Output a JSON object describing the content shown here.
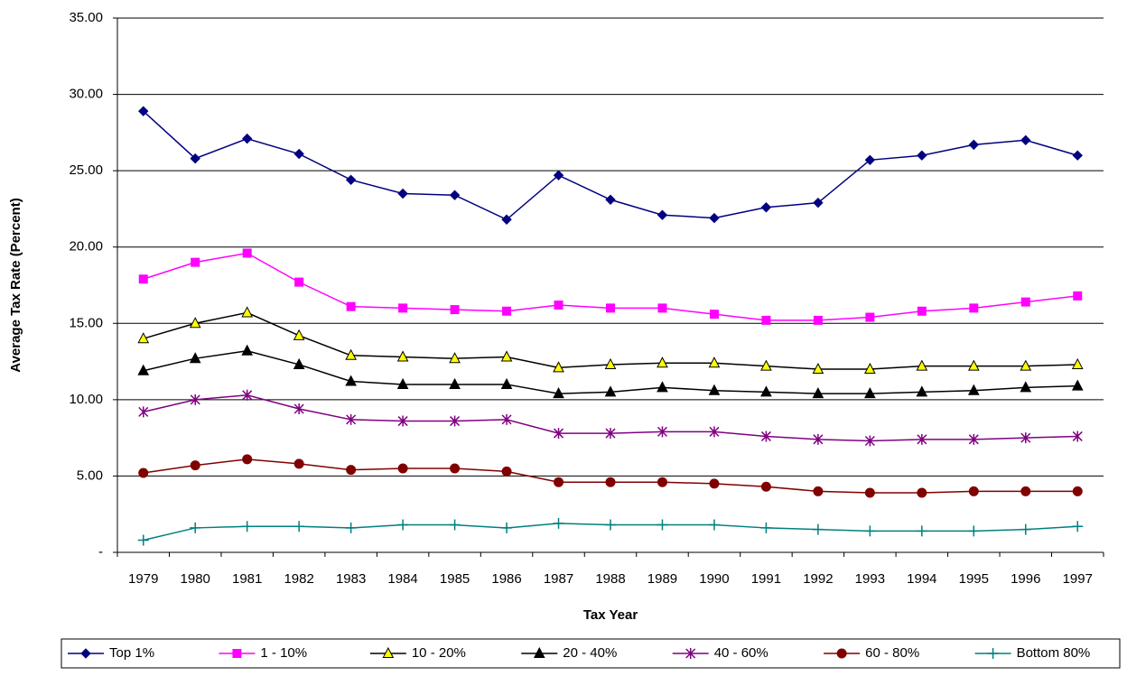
{
  "chart_data": {
    "type": "line",
    "x_label": "Tax Year",
    "y_label": "Average Tax Rate (Percent)",
    "categories": [
      "1979",
      "1980",
      "1981",
      "1982",
      "1983",
      "1984",
      "1985",
      "1986",
      "1987",
      "1988",
      "1989",
      "1990",
      "1991",
      "1992",
      "1993",
      "1994",
      "1995",
      "1996",
      "1997"
    ],
    "ylim": [
      0,
      35
    ],
    "yticks": [
      {
        "value": 0,
        "label": "-"
      },
      {
        "value": 5,
        "label": "5.00"
      },
      {
        "value": 10,
        "label": "10.00"
      },
      {
        "value": 15,
        "label": "15.00"
      },
      {
        "value": 20,
        "label": "20.00"
      },
      {
        "value": 25,
        "label": "25.00"
      },
      {
        "value": 30,
        "label": "30.00"
      },
      {
        "value": 35,
        "label": "35.00"
      }
    ],
    "grid": true,
    "legend": "bottom",
    "series": [
      {
        "name": "Top 1%",
        "color": "#000080",
        "marker": "diamond",
        "marker_fill": "#000080",
        "values": [
          28.9,
          25.8,
          27.1,
          26.1,
          24.4,
          23.5,
          23.4,
          21.8,
          24.7,
          23.1,
          22.1,
          21.9,
          22.6,
          22.9,
          25.7,
          26.0,
          26.7,
          27.0,
          26.0
        ]
      },
      {
        "name": "1 - 10%",
        "color": "#ff00ff",
        "marker": "square",
        "marker_fill": "#ff00ff",
        "values": [
          17.9,
          19.0,
          19.6,
          17.7,
          16.1,
          16.0,
          15.9,
          15.8,
          16.2,
          16.0,
          16.0,
          15.6,
          15.2,
          15.2,
          15.4,
          15.8,
          16.0,
          16.4,
          16.8
        ]
      },
      {
        "name": "10 - 20%",
        "color": "#000000",
        "marker": "triangle",
        "marker_fill": "#ffff00",
        "values": [
          14.0,
          15.0,
          15.7,
          14.2,
          12.9,
          12.8,
          12.7,
          12.8,
          12.1,
          12.3,
          12.4,
          12.4,
          12.2,
          12.0,
          12.0,
          12.2,
          12.2,
          12.2,
          12.3
        ]
      },
      {
        "name": "20 - 40%",
        "color": "#000000",
        "marker": "triangle",
        "marker_fill": "#000000",
        "values": [
          11.9,
          12.7,
          13.2,
          12.3,
          11.2,
          11.0,
          11.0,
          11.0,
          10.4,
          10.5,
          10.8,
          10.6,
          10.5,
          10.4,
          10.4,
          10.5,
          10.6,
          10.8,
          10.9
        ]
      },
      {
        "name": "40 - 60%",
        "color": "#800080",
        "marker": "star",
        "marker_fill": "#800080",
        "values": [
          9.2,
          10.0,
          10.3,
          9.4,
          8.7,
          8.6,
          8.6,
          8.7,
          7.8,
          7.8,
          7.9,
          7.9,
          7.6,
          7.4,
          7.3,
          7.4,
          7.4,
          7.5,
          7.6
        ]
      },
      {
        "name": "60 - 80%",
        "color": "#800000",
        "marker": "circle",
        "marker_fill": "#800000",
        "values": [
          5.2,
          5.7,
          6.1,
          5.8,
          5.4,
          5.5,
          5.5,
          5.3,
          4.6,
          4.6,
          4.6,
          4.5,
          4.3,
          4.0,
          3.9,
          3.9,
          4.0,
          4.0,
          4.0
        ]
      },
      {
        "name": "Bottom 80%",
        "color": "#008080",
        "marker": "plus",
        "marker_fill": "#008080",
        "values": [
          0.8,
          1.6,
          1.7,
          1.7,
          1.6,
          1.8,
          1.8,
          1.6,
          1.9,
          1.8,
          1.8,
          1.8,
          1.6,
          1.5,
          1.4,
          1.4,
          1.4,
          1.5,
          1.7
        ]
      }
    ]
  }
}
